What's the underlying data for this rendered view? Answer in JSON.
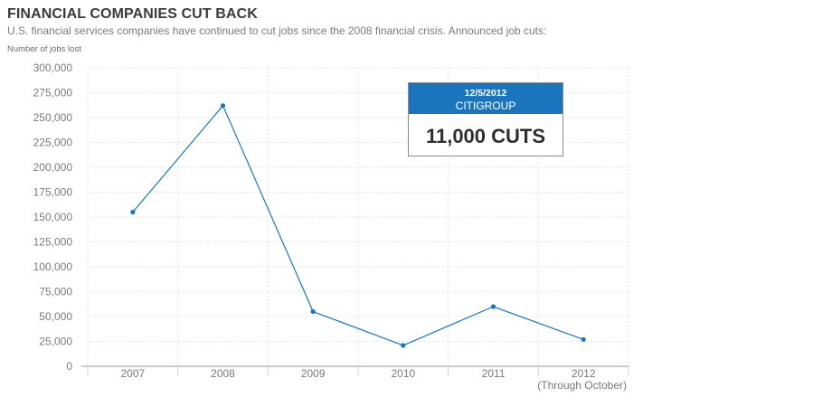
{
  "header": {
    "title": "FINANCIAL COMPANIES CUT BACK",
    "subtitle": "U.S. financial services companies have continued to cut jobs since the 2008 financial crisis. Announced job cuts:"
  },
  "colors": {
    "line": "#1b75bc",
    "grid": "#e3e3e3",
    "axis": "#999999",
    "tick_text": "#7a7a7a",
    "callout_header": "#1b75bc"
  },
  "chart_data": {
    "type": "line",
    "title": "FINANCIAL COMPANIES CUT BACK",
    "xlabel": "",
    "ylabel": "Number of jobs lost",
    "categories": [
      "2007",
      "2008",
      "2009",
      "2010",
      "2011",
      "2012"
    ],
    "category_note": "(Through October)",
    "series": [
      {
        "name": "Announced job cuts",
        "values": [
          155000,
          262000,
          55000,
          21000,
          60000,
          27000
        ]
      }
    ],
    "ylim": [
      0,
      300000
    ],
    "yticks": [
      0,
      25000,
      50000,
      75000,
      100000,
      125000,
      150000,
      175000,
      200000,
      225000,
      250000,
      275000,
      300000
    ],
    "ytick_labels": [
      "0",
      "25,000",
      "50,000",
      "75,000",
      "100,000",
      "125,000",
      "150,000",
      "175,000",
      "200,000",
      "225,000",
      "250,000",
      "275,000",
      "300,000"
    ],
    "grid": true,
    "callout": {
      "date": "12/5/2012",
      "company": "CITIGROUP",
      "value_text": "11,000 CUTS"
    }
  }
}
